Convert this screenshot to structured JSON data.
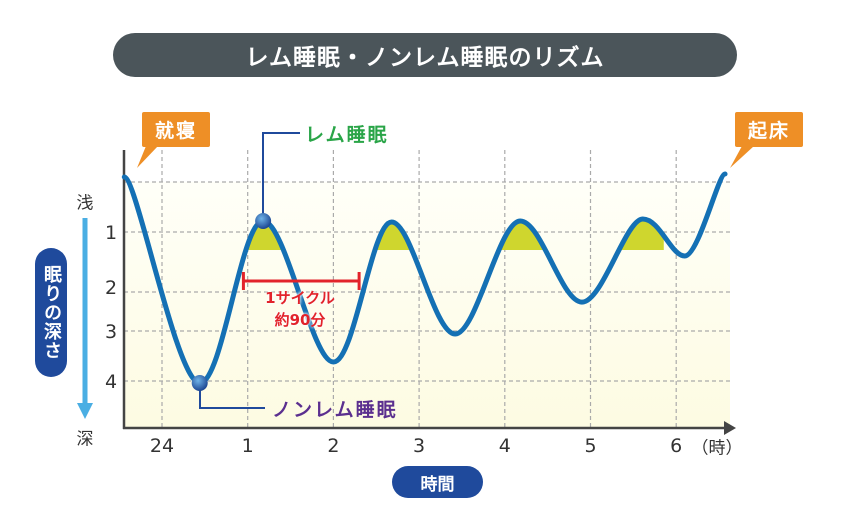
{
  "title": "レム睡眠・ノンレム睡眠のリズム",
  "bedtime_label": "就寝",
  "wake_label": "起床",
  "rem_label": "レム睡眠",
  "nrem_label": "ノンレム睡眠",
  "cycle_label_line1": "1サイクル",
  "cycle_label_line2": "約90分",
  "y_axis_title": "眠りの深さ",
  "y_top_label": "浅",
  "y_bottom_label": "深",
  "x_axis_title": "時間",
  "x_unit": "（時）",
  "colors": {
    "title_bg": "#4b555a",
    "bubble": "#ee8f26",
    "curve": "#1470b4",
    "rem_fill": "#cfd62e",
    "rem_text": "#2aa548",
    "nrem_text": "#5b2f8f",
    "cycle": "#e2232b",
    "pill": "#1f4a9c",
    "arrow": "#4aaee3"
  },
  "chart_data": {
    "type": "line",
    "x_ticks": [
      0,
      1,
      2,
      3,
      4,
      5,
      6
    ],
    "x_tick_labels": [
      "24",
      "1",
      "2",
      "3",
      "4",
      "5",
      "6"
    ],
    "y_ticks": [
      1,
      2,
      3,
      4
    ],
    "y_tick_labels": [
      "1",
      "2",
      "3",
      "4"
    ],
    "y_inverted": true,
    "grid": true,
    "points": [
      {
        "x": -0.44,
        "y": -0.1
      },
      {
        "x": 0.44,
        "y": 4.04
      },
      {
        "x": 1.18,
        "y": 0.78
      },
      {
        "x": 2.0,
        "y": 3.62
      },
      {
        "x": 2.68,
        "y": 0.8
      },
      {
        "x": 3.42,
        "y": 3.06
      },
      {
        "x": 4.18,
        "y": 0.78
      },
      {
        "x": 4.9,
        "y": 2.26
      },
      {
        "x": 5.61,
        "y": 0.74
      },
      {
        "x": 6.1,
        "y": 1.4
      },
      {
        "x": 6.57,
        "y": -0.16
      }
    ],
    "rem_threshold_depth": 1.3,
    "rem_marker": {
      "x": 1.18,
      "y": 0.78
    },
    "nrem_marker": {
      "x": 0.44,
      "y": 4.04
    },
    "cycle_span": [
      0.95,
      2.3
    ]
  }
}
